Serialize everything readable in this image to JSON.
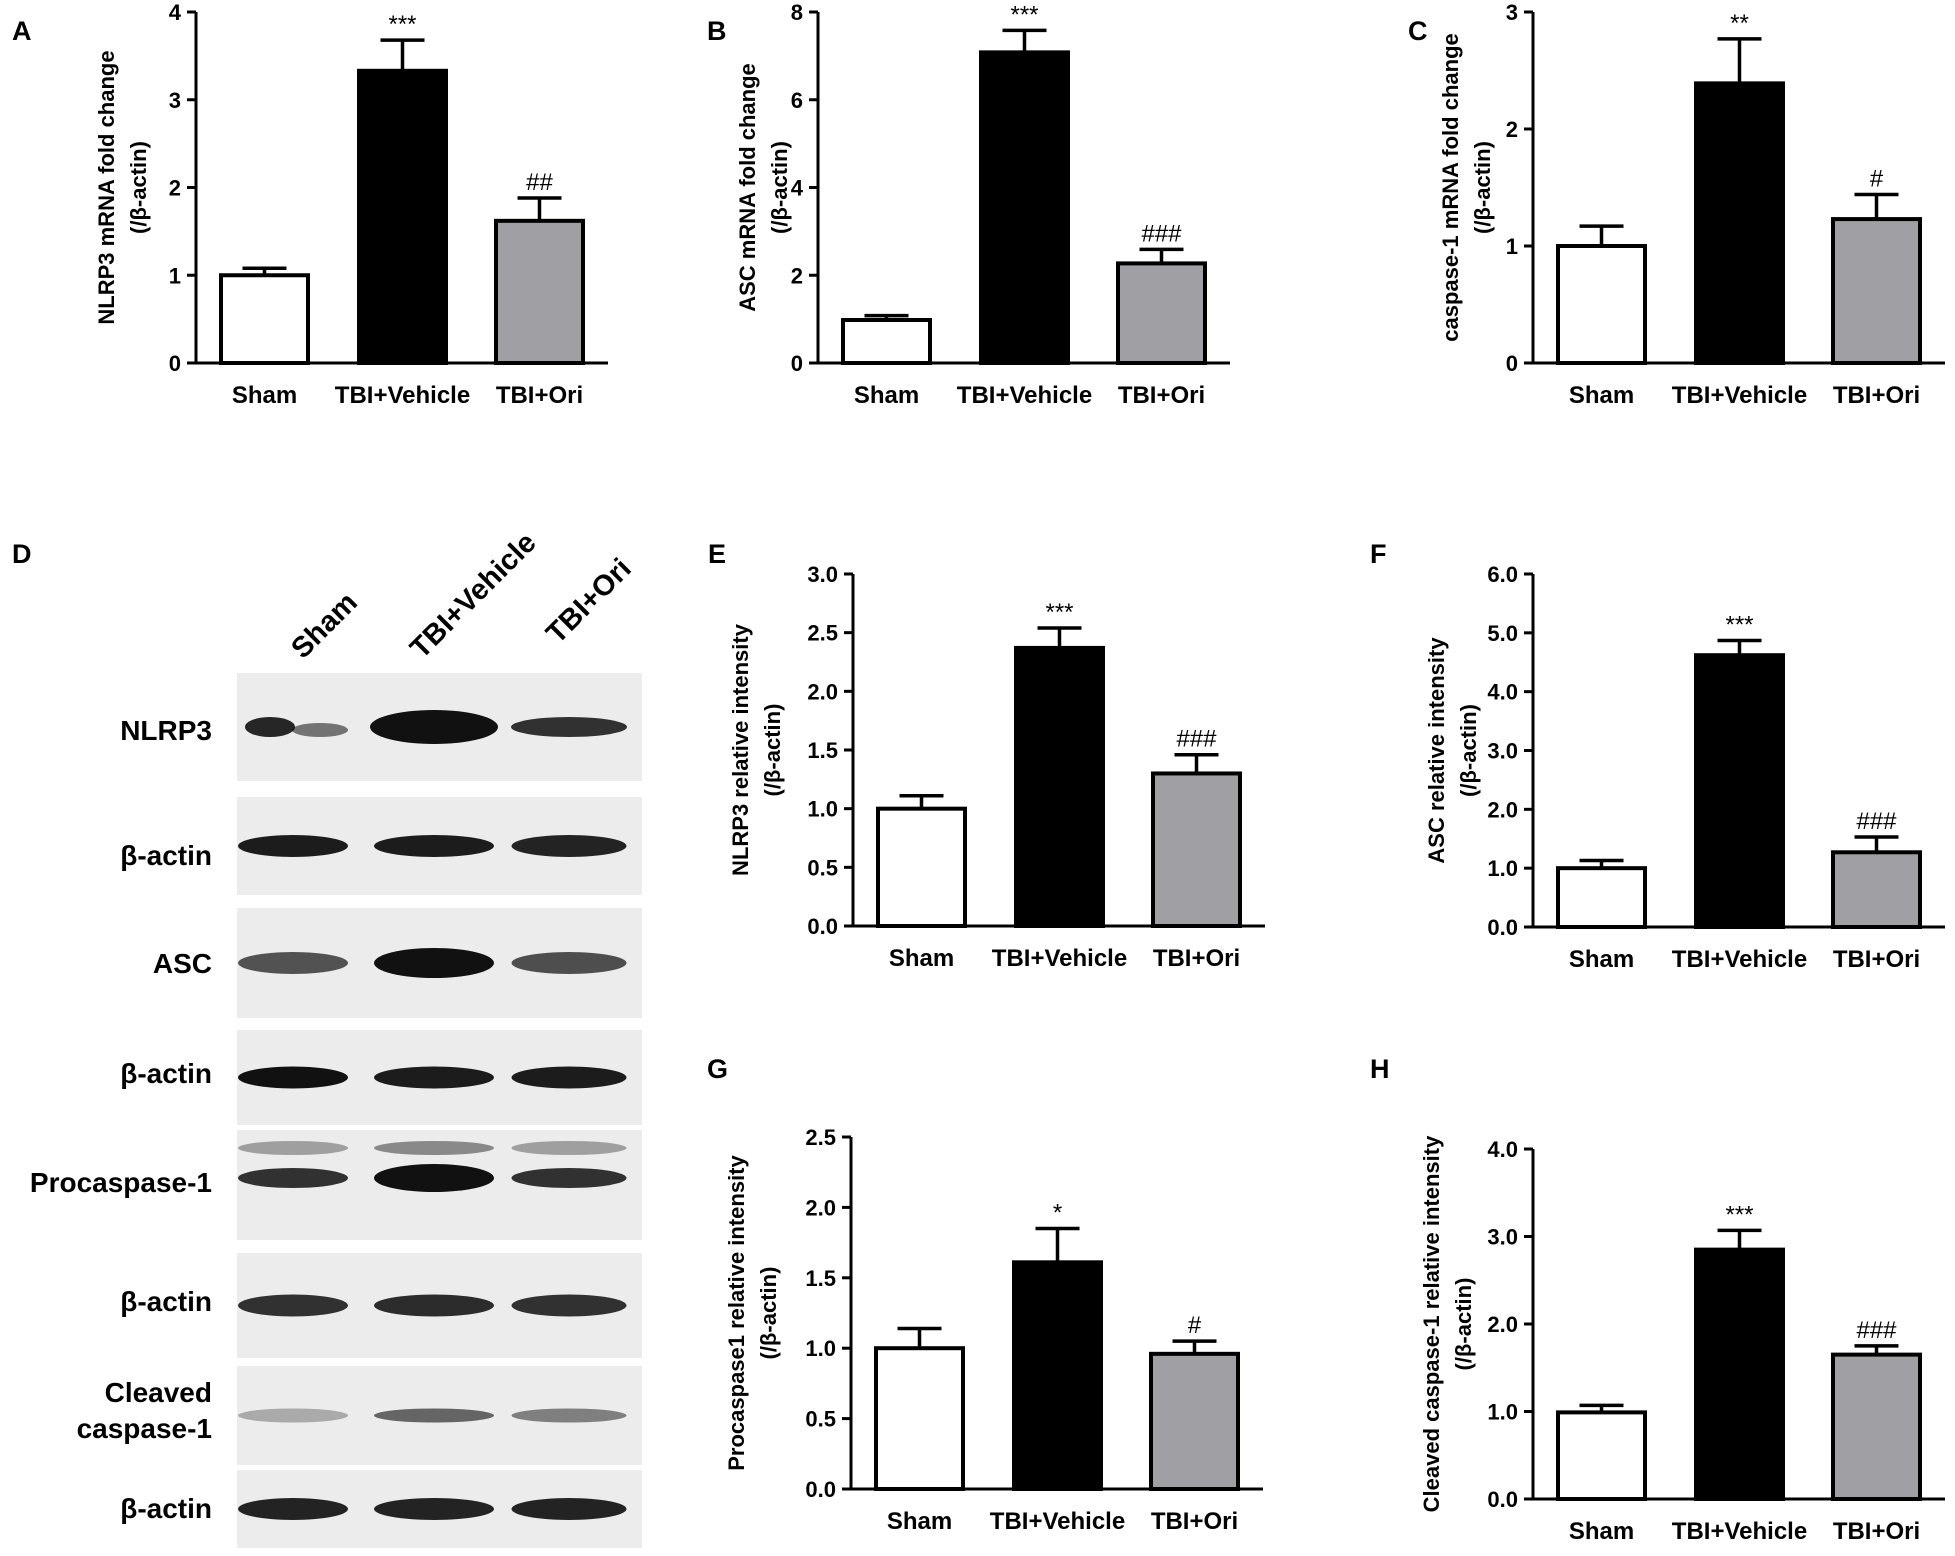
{
  "chart_data": [
    {
      "panel": "A",
      "type": "bar",
      "categories": [
        "Sham",
        "TBI+Vehicle",
        "TBI+Ori"
      ],
      "values": [
        1.0,
        3.33,
        1.62
      ],
      "errors": [
        0.08,
        0.35,
        0.26
      ],
      "significance": [
        "",
        "***",
        "##"
      ],
      "ylabel": [
        "NLRP3 mRNA fold change",
        "(/β-actin)"
      ],
      "ylim": [
        0,
        4
      ],
      "yticks": [
        "0",
        "1",
        "2",
        "3",
        "4"
      ],
      "bar_colors": [
        "#ffffff",
        "#000000",
        "#a0a0a4"
      ]
    },
    {
      "panel": "B",
      "type": "bar",
      "categories": [
        "Sham",
        "TBI+Vehicle",
        "TBI+Ori"
      ],
      "values": [
        0.98,
        7.08,
        2.27
      ],
      "errors": [
        0.1,
        0.5,
        0.32
      ],
      "significance": [
        "",
        "***",
        "###"
      ],
      "ylabel": [
        "ASC mRNA fold change",
        "(/β-actin)"
      ],
      "ylim": [
        0,
        8
      ],
      "yticks": [
        "0",
        "2",
        "4",
        "6",
        "8"
      ],
      "bar_colors": [
        "#ffffff",
        "#000000",
        "#a0a0a4"
      ]
    },
    {
      "panel": "C",
      "type": "bar",
      "categories": [
        "Sham",
        "TBI+Vehicle",
        "TBI+Ori"
      ],
      "values": [
        1.0,
        2.39,
        1.23
      ],
      "errors": [
        0.17,
        0.38,
        0.21
      ],
      "significance": [
        "",
        "**",
        "#"
      ],
      "ylabel": [
        "caspase-1 mRNA fold change",
        "(/β-actin)"
      ],
      "ylim": [
        0,
        3
      ],
      "yticks": [
        "0",
        "1",
        "2",
        "3"
      ],
      "bar_colors": [
        "#ffffff",
        "#000000",
        "#a0a0a4"
      ]
    },
    {
      "panel": "E",
      "type": "bar",
      "categories": [
        "Sham",
        "TBI+Vehicle",
        "TBI+Ori"
      ],
      "values": [
        1.0,
        2.37,
        1.3
      ],
      "errors": [
        0.11,
        0.17,
        0.16
      ],
      "significance": [
        "",
        "***",
        "###"
      ],
      "ylabel": [
        "NLRP3 relative intensity",
        "(/β-actin)"
      ],
      "ylim": [
        0,
        3
      ],
      "yticks": [
        "0.0",
        "0.5",
        "1.0",
        "1.5",
        "2.0",
        "2.5",
        "3.0"
      ],
      "bar_colors": [
        "#ffffff",
        "#000000",
        "#a0a0a4"
      ]
    },
    {
      "panel": "F",
      "type": "bar",
      "categories": [
        "Sham",
        "TBI+Vehicle",
        "TBI+Ori"
      ],
      "values": [
        1.0,
        4.62,
        1.27
      ],
      "errors": [
        0.13,
        0.25,
        0.26
      ],
      "significance": [
        "",
        "***",
        "###"
      ],
      "ylabel": [
        "ASC relative intensity",
        "(/β-actin)"
      ],
      "ylim": [
        0,
        6
      ],
      "yticks": [
        "0.0",
        "1.0",
        "2.0",
        "3.0",
        "4.0",
        "5.0",
        "6.0"
      ],
      "bar_colors": [
        "#ffffff",
        "#000000",
        "#a0a0a4"
      ]
    },
    {
      "panel": "G",
      "type": "bar",
      "categories": [
        "Sham",
        "TBI+Vehicle",
        "TBI+Ori"
      ],
      "values": [
        1.0,
        1.61,
        0.96
      ],
      "errors": [
        0.14,
        0.24,
        0.09
      ],
      "significance": [
        "",
        "*",
        "#"
      ],
      "ylabel": [
        "Procaspase1 relative intensity",
        "(/β-actin)"
      ],
      "ylim": [
        0,
        2.5
      ],
      "yticks": [
        "0.0",
        "0.5",
        "1.0",
        "1.5",
        "2.0",
        "2.5"
      ],
      "bar_colors": [
        "#ffffff",
        "#000000",
        "#a0a0a4"
      ]
    },
    {
      "panel": "H",
      "type": "bar",
      "categories": [
        "Sham",
        "TBI+Vehicle",
        "TBI+Ori"
      ],
      "values": [
        0.99,
        2.85,
        1.65
      ],
      "errors": [
        0.08,
        0.22,
        0.1
      ],
      "significance": [
        "",
        "***",
        "###"
      ],
      "ylabel": [
        "Cleaved caspase-1 relative intensity",
        "(/β-actin)"
      ],
      "ylim": [
        0,
        4
      ],
      "yticks": [
        "0.0",
        "1.0",
        "2.0",
        "3.0",
        "4.0"
      ],
      "bar_colors": [
        "#ffffff",
        "#000000",
        "#a0a0a4"
      ]
    }
  ],
  "western_blot": {
    "panel": "D",
    "lanes": [
      "Sham",
      "TBI+Vehicle",
      "TBI+Ori"
    ],
    "rows": [
      {
        "label": [
          "NLRP3"
        ]
      },
      {
        "label": [
          "β-actin"
        ]
      },
      {
        "label": [
          "ASC"
        ]
      },
      {
        "label": [
          "β-actin"
        ]
      },
      {
        "label": [
          "Procaspase-1"
        ]
      },
      {
        "label": [
          "β-actin"
        ]
      },
      {
        "label": [
          "Cleaved",
          "caspase-1"
        ]
      },
      {
        "label": [
          "β-actin"
        ]
      }
    ]
  }
}
